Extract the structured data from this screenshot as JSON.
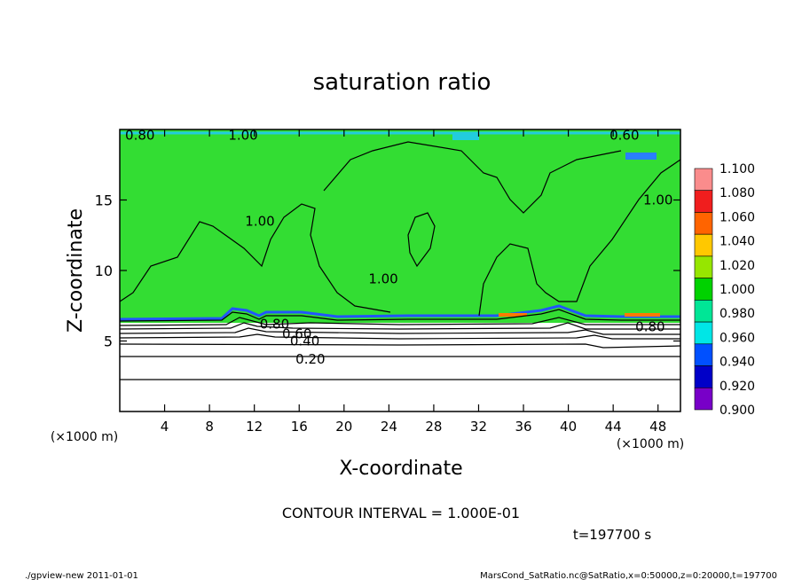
{
  "chart_data": {
    "type": "heatmap",
    "title": "saturation ratio",
    "xlabel": "X-coordinate",
    "ylabel": "Z-coordinate",
    "x_unit_left": "(×1000 m)",
    "x_unit_right": "(×1000 m)",
    "xlim": [
      0,
      50
    ],
    "ylim": [
      0,
      20
    ],
    "x_ticks": [
      4,
      8,
      12,
      16,
      20,
      24,
      28,
      32,
      36,
      40,
      44,
      48
    ],
    "y_ticks": [
      5,
      10,
      15
    ],
    "contour_interval_text": "CONTOUR INTERVAL = 1.000E-01",
    "time_text": "t=197700 s",
    "contour_labels": [
      {
        "text": "0.80",
        "x": 1.8,
        "y": 19.6
      },
      {
        "text": "1.00",
        "x": 11.0,
        "y": 19.6
      },
      {
        "text": "0.60",
        "x": 45.0,
        "y": 19.6
      },
      {
        "text": "1.00",
        "x": 12.5,
        "y": 13.5
      },
      {
        "text": "1.00",
        "x": 23.5,
        "y": 9.4
      },
      {
        "text": "1.00",
        "x": 48.0,
        "y": 15.0
      },
      {
        "text": "0.80",
        "x": 13.8,
        "y": 6.2
      },
      {
        "text": "0.60",
        "x": 15.8,
        "y": 5.5
      },
      {
        "text": "0.40",
        "x": 16.5,
        "y": 5.0
      },
      {
        "text": "0.20",
        "x": 17.0,
        "y": 3.7
      },
      {
        "text": "0.80",
        "x": 47.3,
        "y": 6.0
      }
    ],
    "colorbar": {
      "levels": [
        "1.100",
        "1.080",
        "1.060",
        "1.040",
        "1.020",
        "1.000",
        "0.980",
        "0.960",
        "0.940",
        "0.920",
        "0.900"
      ],
      "colors": [
        "#fa8c8c",
        "#f01e1e",
        "#ff6400",
        "#ffc800",
        "#96e600",
        "#00d200",
        "#00e696",
        "#00e6e6",
        "#0050ff",
        "#0000c8",
        "#7800c8"
      ]
    }
  },
  "footer": {
    "left": "./gpview-new   2011-01-01",
    "right": "MarsCond_SatRatio.nc@SatRatio,x=0:50000,z=0:20000,t=197700"
  }
}
